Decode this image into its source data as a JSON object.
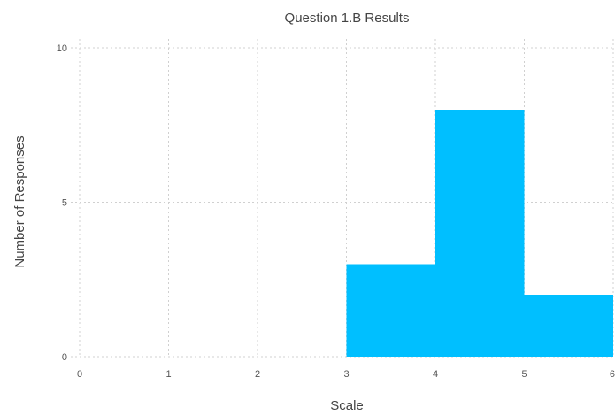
{
  "chart_data": {
    "type": "bar",
    "title": "Question 1.B Results",
    "xlabel": "Scale",
    "ylabel": "Number of Responses",
    "bins": [
      {
        "start": 3,
        "end": 4,
        "value": 3
      },
      {
        "start": 4,
        "end": 5,
        "value": 8
      },
      {
        "start": 5,
        "end": 6,
        "value": 2
      }
    ],
    "xlim": [
      0,
      6
    ],
    "ylim": [
      0,
      10
    ],
    "x_ticks": [
      "0",
      "1",
      "2",
      "3",
      "4",
      "5",
      "6"
    ],
    "y_ticks": [
      "0",
      "5",
      "10"
    ],
    "grid": true,
    "bar_color": "#00BFFF"
  }
}
